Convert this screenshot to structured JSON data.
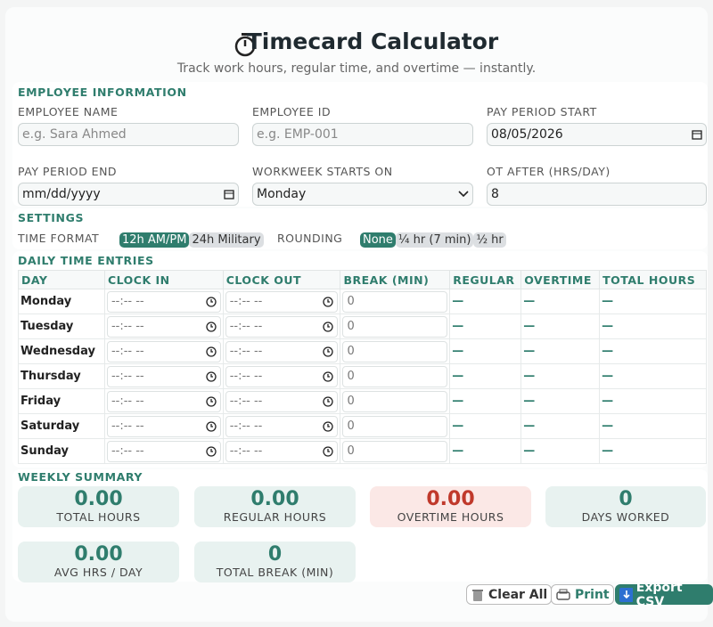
{
  "header": {
    "title": "Timecard Calculator",
    "subtitle": "Track work hours, regular time, and overtime — instantly."
  },
  "employee": {
    "heading": "EMPLOYEE INFORMATION",
    "fields": [
      {
        "label": "EMPLOYEE NAME",
        "placeholder": "e.g. Sara Ahmed"
      },
      {
        "label": "EMPLOYEE ID",
        "placeholder": "e.g. EMP-001"
      },
      {
        "label": "PAY PERIOD START",
        "value": "08/05/2026"
      },
      {
        "label": "PAY PERIOD END",
        "value": "mm/dd/yyyy"
      },
      {
        "label": "WORKWEEK STARTS ON",
        "value": "Monday"
      },
      {
        "label": "OT AFTER (HRS/DAY)",
        "value": "8"
      }
    ]
  },
  "settings": {
    "heading": "SETTINGS",
    "time_format": {
      "label": "TIME FORMAT",
      "options": [
        "12h AM/PM",
        "24h Military"
      ]
    },
    "rounding": {
      "label": "ROUNDING",
      "options": [
        "None",
        "¼ hr (7 min)",
        "½ hr"
      ]
    }
  },
  "entries": {
    "heading": "DAILY TIME ENTRIES",
    "columns": [
      "DAY",
      "CLOCK IN",
      "CLOCK OUT",
      "BREAK (MIN)",
      "REGULAR",
      "OVERTIME",
      "TOTAL HOURS"
    ],
    "rows": [
      [
        "Monday",
        "--:-- --",
        "--:-- --",
        "0",
        "—",
        "—",
        "—"
      ],
      [
        "Tuesday",
        "--:-- --",
        "--:-- --",
        "0",
        "—",
        "—",
        "—"
      ],
      [
        "Wednesday",
        "--:-- --",
        "--:-- --",
        "0",
        "—",
        "—",
        "—"
      ],
      [
        "Thursday",
        "--:-- --",
        "--:-- --",
        "0",
        "—",
        "—",
        "—"
      ],
      [
        "Friday",
        "--:-- --",
        "--:-- --",
        "0",
        "—",
        "—",
        "—"
      ],
      [
        "Saturday",
        "--:-- --",
        "--:-- --",
        "0",
        "—",
        "—",
        "—"
      ],
      [
        "Sunday",
        "--:-- --",
        "--:-- --",
        "0",
        "—",
        "—",
        "—"
      ]
    ]
  },
  "summary": {
    "heading": "WEEKLY SUMMARY",
    "cards": [
      {
        "value": "0.00",
        "label": "TOTAL HOURS"
      },
      {
        "value": "0.00",
        "label": "REGULAR HOURS"
      },
      {
        "value": "0.00",
        "label": "OVERTIME HOURS"
      },
      {
        "value": "0",
        "label": "DAYS WORKED"
      },
      {
        "value": "0.00",
        "label": "AVG HRS / DAY"
      },
      {
        "value": "0",
        "label": "TOTAL BREAK (MIN)"
      }
    ]
  },
  "actions": [
    "Clear All",
    "Print",
    "Export CSV"
  ]
}
